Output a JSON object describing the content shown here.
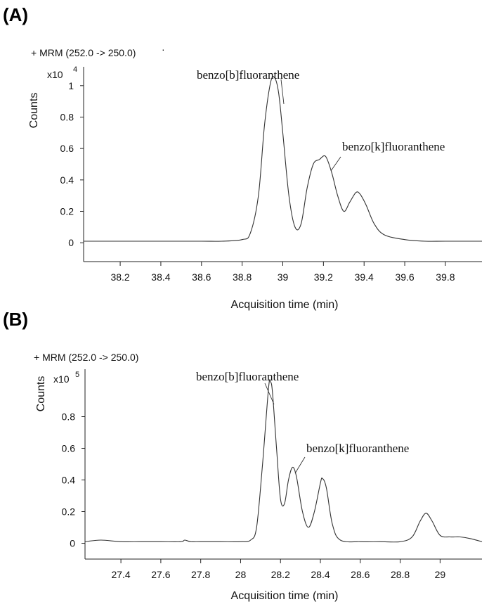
{
  "chart_data": [
    {
      "type": "line",
      "panel_label": "(A)",
      "trace_title": "+ MRM (252.0 -> 250.0)",
      "trace_title_suffix": "·",
      "ylabel": "Counts",
      "ylabel_multiplier_base": "x10",
      "ylabel_multiplier_exp": "4",
      "xlabel": "Acquisition time (min)",
      "xlim": [
        38.02,
        39.98
      ],
      "ylim": [
        -0.12,
        1.12
      ],
      "x_ticks": [
        38.2,
        38.4,
        38.6,
        38.8,
        39.0,
        39.2,
        39.4,
        39.6,
        39.8
      ],
      "x_tick_labels": [
        "38.2",
        "38.4",
        "38.6",
        "38.8",
        "39",
        "39.2",
        "39.4",
        "39.6",
        "39.8"
      ],
      "y_ticks": [
        0,
        0.2,
        0.4,
        0.6,
        0.8,
        1.0
      ],
      "y_tick_labels": [
        "0",
        "0.2",
        "0.4",
        "0.6",
        "0.8",
        "1"
      ],
      "series": [
        {
          "x": [
            38.02,
            38.2,
            38.4,
            38.6,
            38.7,
            38.8,
            38.84,
            38.88,
            38.91,
            38.94,
            38.96,
            38.98,
            39.0,
            39.03,
            39.06,
            39.09,
            39.12,
            39.15,
            39.18,
            39.21,
            39.24,
            39.27,
            39.3,
            39.33,
            39.36,
            39.38,
            39.41,
            39.45,
            39.5,
            39.6,
            39.7,
            39.8,
            39.98
          ],
          "y": [
            0.01,
            0.01,
            0.01,
            0.01,
            0.01,
            0.02,
            0.06,
            0.3,
            0.75,
            1.02,
            1.05,
            0.95,
            0.7,
            0.3,
            0.1,
            0.12,
            0.35,
            0.5,
            0.53,
            0.55,
            0.45,
            0.3,
            0.2,
            0.26,
            0.32,
            0.31,
            0.24,
            0.12,
            0.05,
            0.02,
            0.01,
            0.01,
            0.01
          ]
        }
      ],
      "annotations": [
        {
          "text": "benzo[b]fluoranthene",
          "x": 38.96,
          "y": 0.9
        },
        {
          "text": "benzo[k]fluoranthene",
          "x": 39.21,
          "y": 0.5
        }
      ]
    },
    {
      "type": "line",
      "panel_label": "(B)",
      "trace_title": "+ MRM (252.0 -> 250.0)",
      "ylabel": "Counts",
      "ylabel_multiplier_base": "x10",
      "ylabel_multiplier_exp": "5",
      "xlabel": "Acquisition time (min)",
      "xlim": [
        27.22,
        29.21
      ],
      "ylim": [
        -0.1,
        1.1
      ],
      "x_ticks": [
        27.4,
        27.6,
        27.8,
        28.0,
        28.2,
        28.4,
        28.6,
        28.8,
        29.0
      ],
      "x_tick_labels": [
        "27.4",
        "27.6",
        "27.8",
        "28",
        "28.2",
        "28.4",
        "28.6",
        "28.8",
        "29"
      ],
      "y_ticks": [
        0,
        0.2,
        0.4,
        0.6,
        0.8
      ],
      "y_tick_labels": [
        "0",
        "0.2",
        "0.4",
        "0.6",
        "0.8"
      ],
      "series": [
        {
          "x": [
            27.22,
            27.3,
            27.4,
            27.5,
            27.6,
            27.7,
            27.72,
            27.75,
            27.8,
            27.9,
            28.0,
            28.05,
            28.08,
            28.11,
            28.14,
            28.15,
            28.16,
            28.18,
            28.2,
            28.22,
            28.24,
            28.26,
            28.28,
            28.31,
            28.34,
            28.37,
            28.4,
            28.41,
            28.43,
            28.46,
            28.5,
            28.6,
            28.7,
            28.8,
            28.86,
            28.9,
            28.93,
            28.96,
            29.0,
            29.05,
            29.1,
            29.15,
            29.21
          ],
          "y": [
            0.01,
            0.02,
            0.01,
            0.01,
            0.01,
            0.01,
            0.02,
            0.01,
            0.01,
            0.01,
            0.01,
            0.02,
            0.1,
            0.5,
            0.98,
            1.02,
            0.95,
            0.6,
            0.28,
            0.25,
            0.4,
            0.48,
            0.42,
            0.2,
            0.1,
            0.2,
            0.38,
            0.41,
            0.35,
            0.12,
            0.02,
            0.01,
            0.01,
            0.01,
            0.04,
            0.14,
            0.19,
            0.14,
            0.05,
            0.04,
            0.04,
            0.03,
            0.01
          ]
        }
      ],
      "annotations": [
        {
          "text": "benzo[b]fluoranthene",
          "x": 28.15,
          "y": 0.93
        },
        {
          "text": "benzo[k]fluoranthene",
          "x": 28.26,
          "y": 0.42
        }
      ]
    }
  ]
}
